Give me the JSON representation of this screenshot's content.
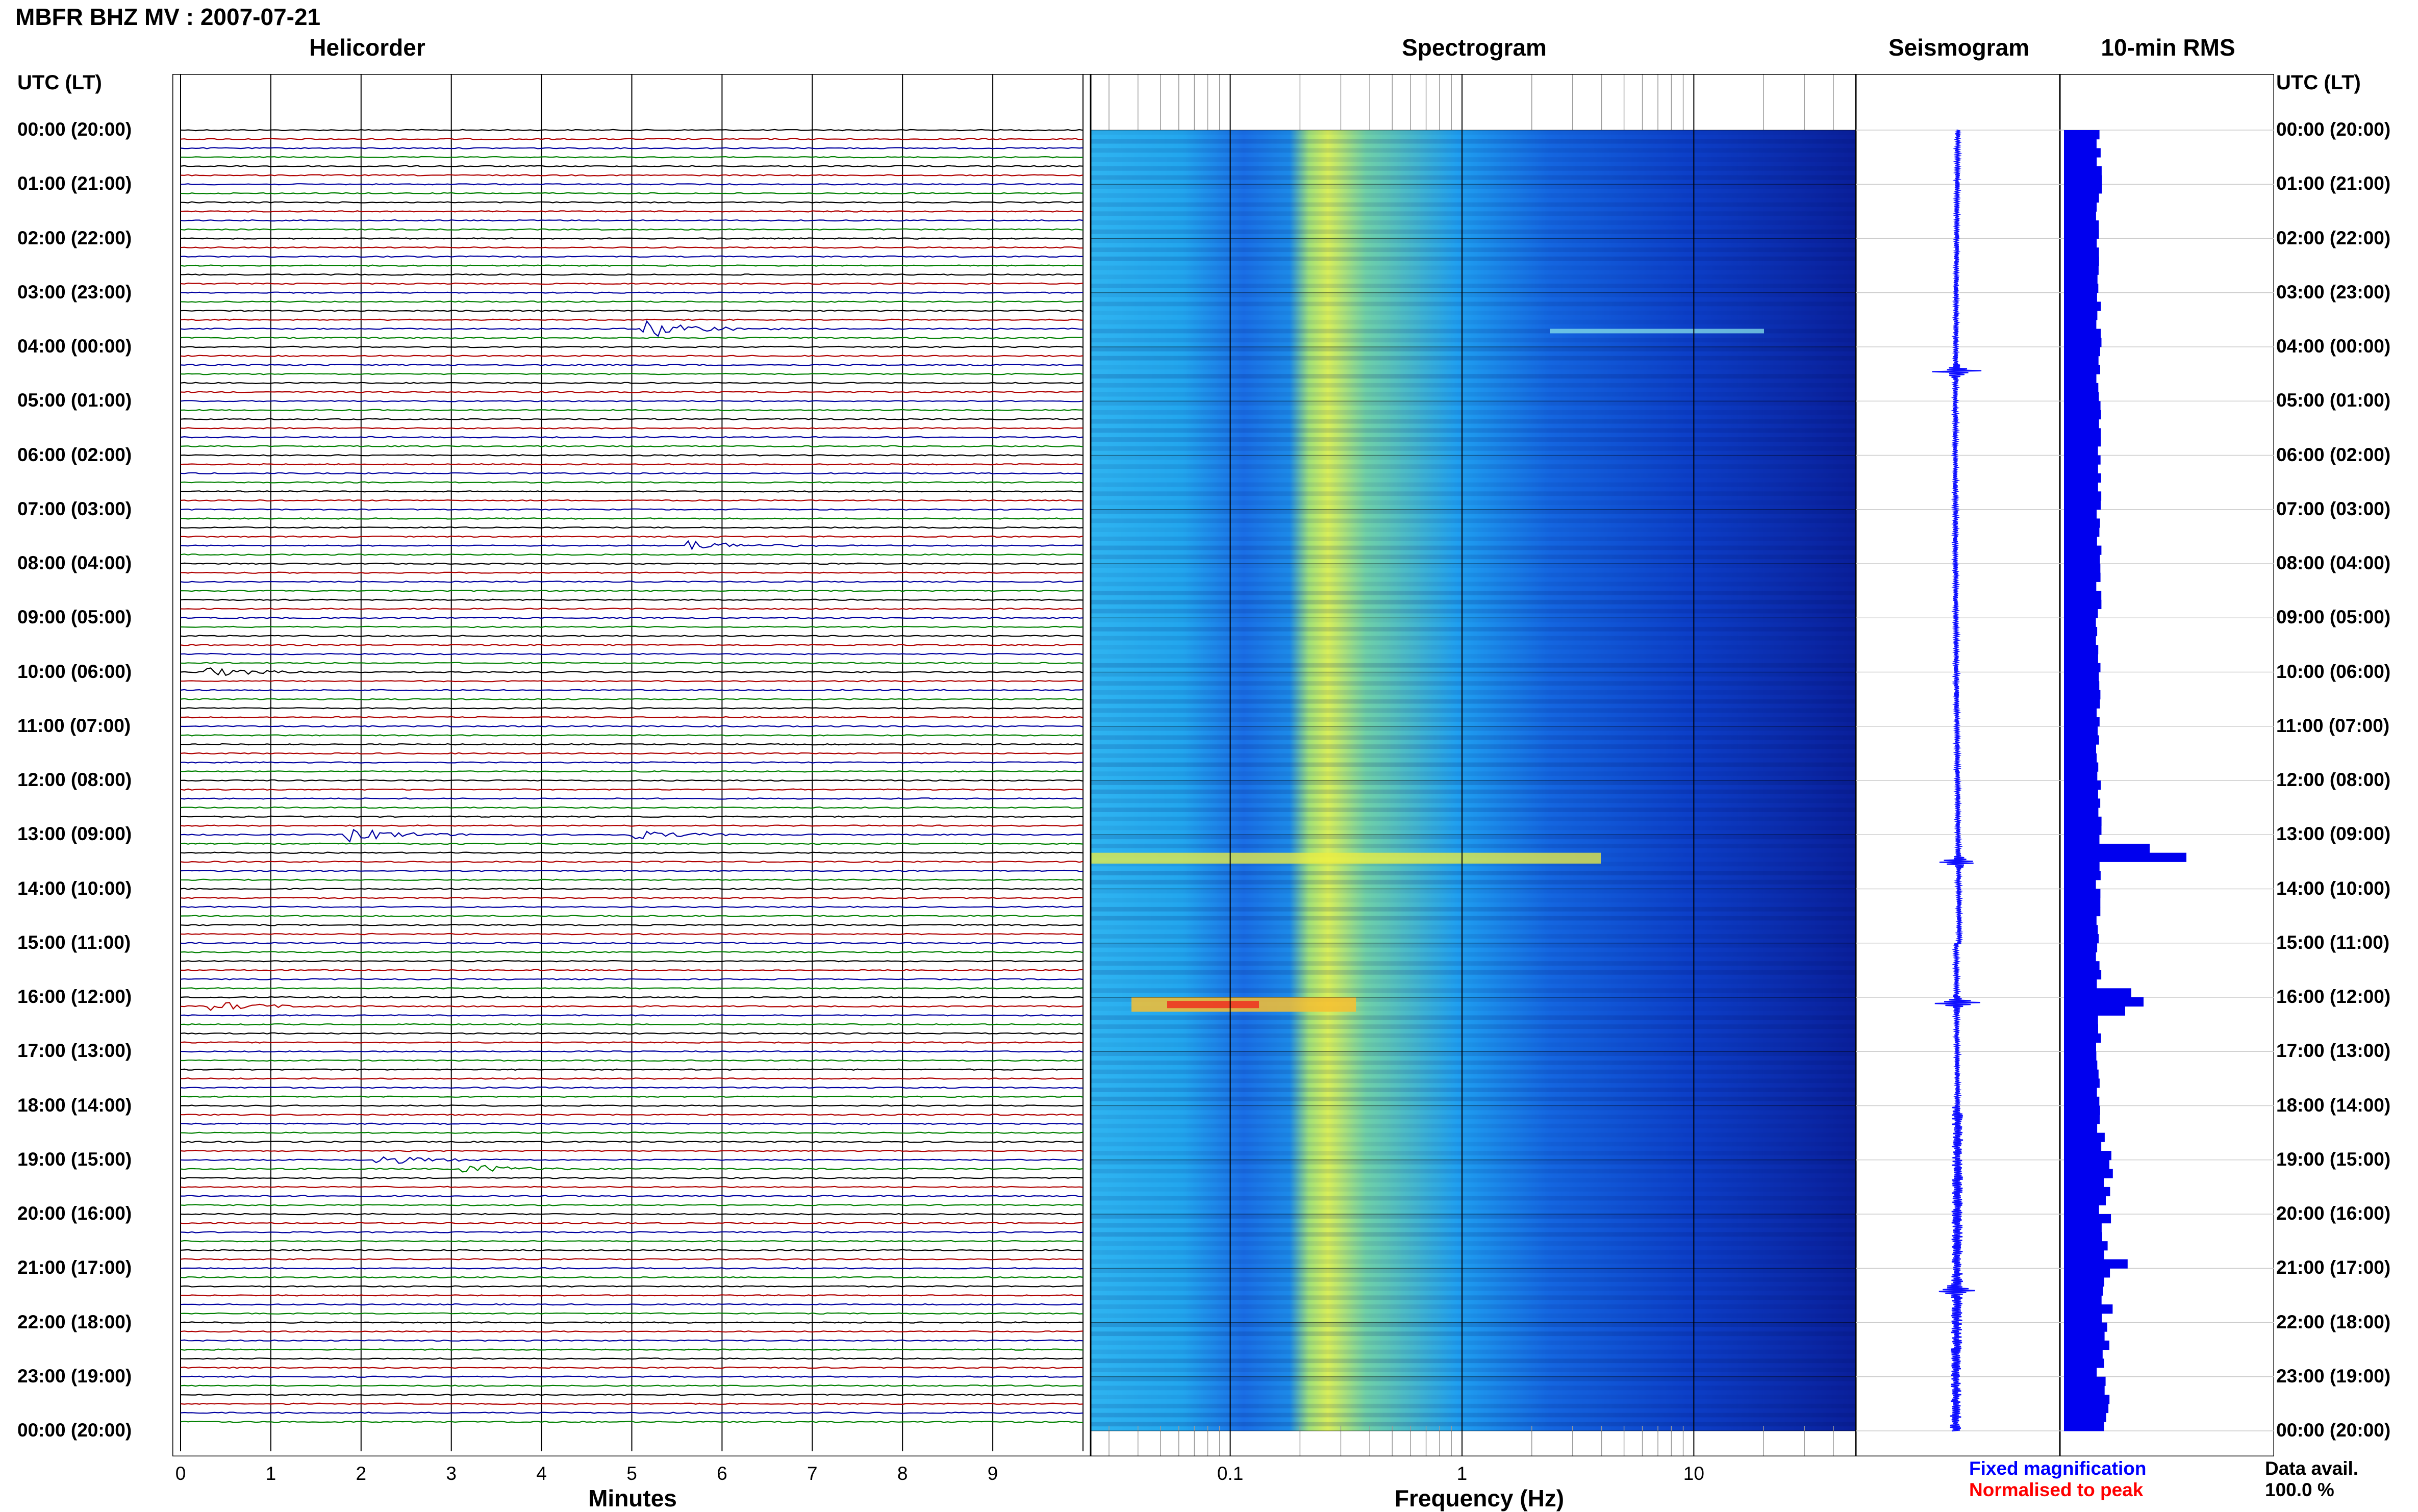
{
  "header": {
    "title": "MBFR BHZ MV : 2007-07-21",
    "utc_left": "UTC (LT)",
    "utc_right": "UTC (LT)"
  },
  "panels": {
    "helicorder": "Helicorder",
    "spectrogram": "Spectrogram",
    "seismogram": "Seismogram",
    "rms": "10-min RMS"
  },
  "time_labels": [
    "00:00 (20:00)",
    "01:00 (21:00)",
    "02:00 (22:00)",
    "03:00 (23:00)",
    "04:00 (00:00)",
    "05:00 (01:00)",
    "06:00 (02:00)",
    "07:00 (03:00)",
    "08:00 (04:00)",
    "09:00 (05:00)",
    "10:00 (06:00)",
    "11:00 (07:00)",
    "12:00 (08:00)",
    "13:00 (09:00)",
    "14:00 (10:00)",
    "15:00 (11:00)",
    "16:00 (12:00)",
    "17:00 (13:00)",
    "18:00 (14:00)",
    "19:00 (15:00)",
    "20:00 (16:00)",
    "21:00 (17:00)",
    "22:00 (18:00)",
    "23:00 (19:00)",
    "00:00 (20:00)"
  ],
  "axes": {
    "minutes_label": "Minutes",
    "minutes_ticks": [
      "0",
      "1",
      "2",
      "3",
      "4",
      "5",
      "6",
      "7",
      "8",
      "9"
    ],
    "frequency_label": "Frequency (Hz)",
    "frequency_ticks": [
      "0.1",
      "1",
      "10"
    ]
  },
  "legend": {
    "fixed": "Fixed magnification",
    "normalised": "Normalised to peak",
    "fixed_color": "#0000ff",
    "normalised_color": "#ff0000",
    "availability_label": "Data avail.",
    "availability_value": "100.0 %"
  },
  "colors": {
    "trace_cycle": [
      "#000000",
      "#b00000",
      "#0000a0",
      "#008000"
    ],
    "seismogram": "#1010ff",
    "rms_bar": "#0000ee"
  },
  "chart_data": [
    {
      "type": "line",
      "title": "Helicorder",
      "xlabel": "Minutes",
      "x_range": [
        0,
        10
      ],
      "rows": 144,
      "row_minutes": 10,
      "events": [
        {
          "row": 22,
          "minute": 5.2,
          "amp": 4
        },
        {
          "row": 78,
          "minute": 1.9,
          "amp": 3
        },
        {
          "row": 78,
          "minute": 5.0,
          "amp": 2
        },
        {
          "row": 97,
          "minute": 0.4,
          "amp": 2
        },
        {
          "row": 60,
          "minute": 0.3,
          "amp": 2
        },
        {
          "row": 46,
          "minute": 5.7,
          "amp": 2
        },
        {
          "row": 114,
          "minute": 2.2,
          "amp": 2
        },
        {
          "row": 115,
          "minute": 3.2,
          "amp": 2
        }
      ]
    },
    {
      "type": "heatmap",
      "title": "Spectrogram",
      "xlabel": "Frequency (Hz)",
      "x_scale": "log",
      "x_range": [
        0.025,
        50
      ],
      "colormap": "jet"
    },
    {
      "type": "line",
      "title": "Seismogram",
      "events_hours": [
        4.45,
        13.5,
        16.1,
        21.4
      ]
    },
    {
      "type": "bar",
      "title": "10-min RMS",
      "orientation": "horizontal",
      "baseline_rows": 144,
      "peaks": [
        {
          "row": 22,
          "value": 0.3
        },
        {
          "row": 80,
          "value": 1.0
        },
        {
          "row": 79,
          "value": 0.7
        },
        {
          "row": 95,
          "value": 0.55
        },
        {
          "row": 96,
          "value": 0.65
        },
        {
          "row": 97,
          "value": 0.5
        },
        {
          "row": 125,
          "value": 0.52
        }
      ]
    }
  ]
}
